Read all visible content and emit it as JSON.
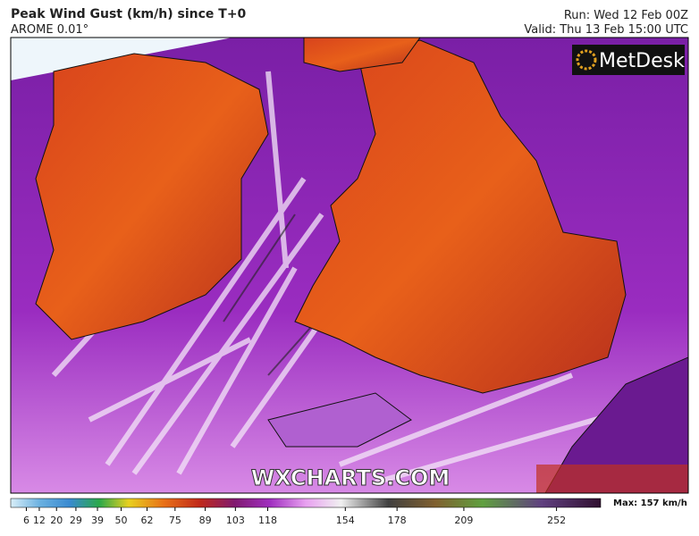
{
  "header": {
    "title": "Peak Wind Gust (km/h) since T+0",
    "model": "AROME 0.01°",
    "run": "Run: Wed 12 Feb 00Z",
    "valid": "Valid: Thu 13 Feb 15:00 UTC"
  },
  "logo": "MetDesk",
  "watermark": "WXCHARTS.COM",
  "legend": {
    "range": [
      0,
      270
    ],
    "ticks": [
      6,
      12,
      20,
      29,
      39,
      50,
      62,
      75,
      89,
      103,
      118,
      154,
      178,
      209,
      252
    ],
    "max_label": "Max: 157 km/h"
  }
}
